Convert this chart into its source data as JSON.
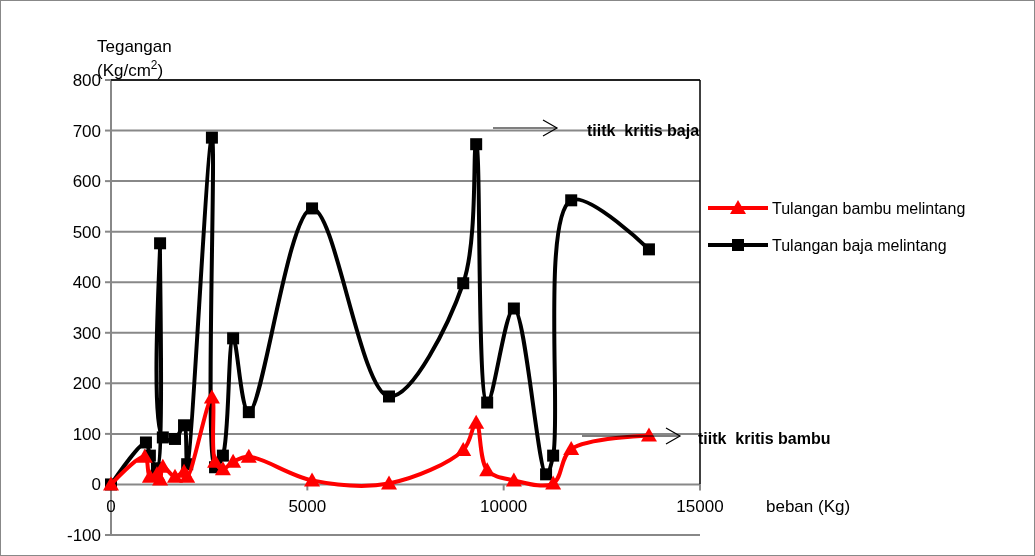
{
  "chart_data": {
    "type": "line",
    "ylabel": "Tegangan (Kg/cm$^{2}$)",
    "xlabel": "beban (Kg)",
    "xlim": [
      0,
      15000
    ],
    "xticks": [
      0,
      5000,
      10000,
      15000
    ],
    "ylim": [
      -100,
      800
    ],
    "yticks": [
      -100,
      0,
      100,
      200,
      300,
      400,
      500,
      600,
      700,
      800
    ],
    "grid": "y",
    "legend": "right",
    "line_style": "solid",
    "series": [
      {
        "name": "Tulangan bambu melintang",
        "color": "#ff0000",
        "marker": "triangle",
        "x": [
          0,
          860,
          990,
          1170,
          1250,
          1320,
          1630,
          1860,
          1940,
          2570,
          2650,
          2850,
          3110,
          3510,
          5120,
          7080,
          8970,
          9300,
          9580,
          10260,
          11260,
          11720,
          13700
        ],
        "values": [
          0,
          55,
          15,
          20,
          10,
          35,
          15,
          25,
          15,
          172,
          45,
          30,
          45,
          55,
          8,
          2,
          68,
          122,
          28,
          8,
          2,
          70,
          97
        ]
      },
      {
        "name": "Tulangan baja melintang",
        "color": "#000000",
        "marker": "square",
        "x": [
          0,
          890,
          990,
          1170,
          1250,
          1320,
          1630,
          1860,
          1940,
          2570,
          2650,
          2850,
          3110,
          3510,
          5120,
          7080,
          8970,
          9300,
          9580,
          10260,
          11080,
          11260,
          11720,
          13700
        ],
        "values": [
          0,
          83,
          57,
          32,
          477,
          93,
          90,
          117,
          40,
          686,
          34,
          57,
          289,
          143,
          546,
          174,
          398,
          673,
          162,
          348,
          20,
          57,
          562,
          465
        ]
      }
    ],
    "annotations": [
      "tiitk  kritis baja",
      "tiitk  kritis bambu"
    ]
  }
}
